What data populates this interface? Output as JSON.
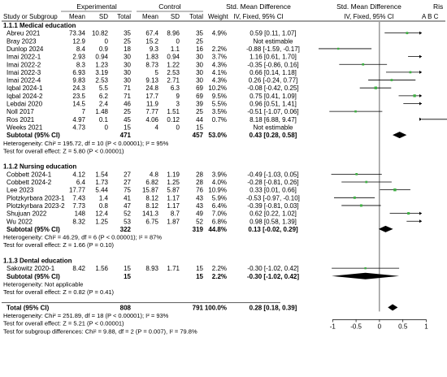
{
  "header": {
    "group_experimental": "Experimental",
    "group_control": "Control",
    "col_study": "Study or Subgroup",
    "col_mean": "Mean",
    "col_sd": "SD",
    "col_total": "Total",
    "col_weight": "Weight",
    "smd_title": "Std. Mean Difference",
    "smd_method": "IV, Fixed, 95% CI",
    "plot_title": "Std. Mean Difference",
    "plot_method": "IV, Fixed, 95% CI",
    "risk_title": "Ris",
    "risk_cols": "A  B  C"
  },
  "colors": {
    "square": "#3fb043",
    "line": "#000000",
    "diamond": "#000000"
  },
  "chart_data": {
    "type": "forest",
    "xlim": [
      -1.3,
      0.8
    ],
    "xticks": [
      -1,
      -0.5,
      0,
      0.5,
      1
    ],
    "rows": [
      {
        "kind": "heading",
        "label": "1.1.1 Medical education"
      },
      {
        "kind": "study",
        "label": "Abreu 2021",
        "e_mean": "73.34",
        "e_sd": "10.82",
        "e_n": "35",
        "c_mean": "67.4",
        "c_sd": "8.96",
        "c_n": "35",
        "weight": "4.9%",
        "ci_text": "0.59 [0.11, 1.07]",
        "est": 0.59,
        "lo": 0.11,
        "hi": 1.07,
        "w": 4.9
      },
      {
        "kind": "study",
        "label": "Bray 2023",
        "e_mean": "12.9",
        "e_sd": "0",
        "e_n": "25",
        "c_mean": "15.2",
        "c_sd": "0",
        "c_n": "25",
        "weight": "",
        "ci_text": "Not estimable"
      },
      {
        "kind": "study",
        "label": "Dunlop 2024",
        "e_mean": "8.4",
        "e_sd": "0.9",
        "e_n": "18",
        "c_mean": "9.3",
        "c_sd": "1.1",
        "c_n": "16",
        "weight": "2.2%",
        "ci_text": "-0.88 [-1.59, -0.17]",
        "est": -0.88,
        "lo": -1.59,
        "hi": -0.17,
        "w": 2.2
      },
      {
        "kind": "study",
        "label": "Imai 2022-1",
        "e_mean": "2.93",
        "e_sd": "0.94",
        "e_n": "30",
        "c_mean": "1.83",
        "c_sd": "0.94",
        "c_n": "30",
        "weight": "3.7%",
        "ci_text": "1.16 [0.61, 1.70]",
        "est": 1.16,
        "lo": 0.61,
        "hi": 1.7,
        "w": 3.7
      },
      {
        "kind": "study",
        "label": "Imai 2022-2",
        "e_mean": "8.3",
        "e_sd": "1.23",
        "e_n": "30",
        "c_mean": "8.73",
        "c_sd": "1.22",
        "c_n": "30",
        "weight": "4.3%",
        "ci_text": "-0.35 [-0.86, 0.16]",
        "est": -0.35,
        "lo": -0.86,
        "hi": 0.16,
        "w": 4.3
      },
      {
        "kind": "study",
        "label": "Imai 2022-3",
        "e_mean": "6.93",
        "e_sd": "3.19",
        "e_n": "30",
        "c_mean": "5",
        "c_sd": "2.53",
        "c_n": "30",
        "weight": "4.1%",
        "ci_text": "0.66 [0.14, 1.18]",
        "est": 0.66,
        "lo": 0.14,
        "hi": 1.18,
        "w": 4.1
      },
      {
        "kind": "study",
        "label": "Imai 2022-4",
        "e_mean": "9.83",
        "e_sd": "2.53",
        "e_n": "30",
        "c_mean": "9.13",
        "c_sd": "2.71",
        "c_n": "30",
        "weight": "4.3%",
        "ci_text": "0.26 [-0.24, 0.77]",
        "est": 0.26,
        "lo": -0.24,
        "hi": 0.77,
        "w": 4.3
      },
      {
        "kind": "study",
        "label": "Iqbal 2024-1",
        "e_mean": "24.3",
        "e_sd": "5.5",
        "e_n": "71",
        "c_mean": "24.8",
        "c_sd": "6.3",
        "c_n": "69",
        "weight": "10.2%",
        "ci_text": "-0.08 [-0.42, 0.25]",
        "est": -0.08,
        "lo": -0.42,
        "hi": 0.25,
        "w": 10.2
      },
      {
        "kind": "study",
        "label": "Iqbal 2024-2",
        "e_mean": "23.5",
        "e_sd": "6.2",
        "e_n": "71",
        "c_mean": "17.7",
        "c_sd": "9",
        "c_n": "69",
        "weight": "9.5%",
        "ci_text": "0.75 [0.41, 1.09]",
        "est": 0.75,
        "lo": 0.41,
        "hi": 1.09,
        "w": 9.5
      },
      {
        "kind": "study",
        "label": "Lebdai 2020",
        "e_mean": "14.5",
        "e_sd": "2.4",
        "e_n": "46",
        "c_mean": "11.9",
        "c_sd": "3",
        "c_n": "39",
        "weight": "5.5%",
        "ci_text": "0.96 [0.51, 1.41]",
        "est": 0.96,
        "lo": 0.51,
        "hi": 1.41,
        "w": 5.5
      },
      {
        "kind": "study",
        "label": "Noll 2017",
        "e_mean": "7",
        "e_sd": "1.48",
        "e_n": "25",
        "c_mean": "7.77",
        "c_sd": "1.51",
        "c_n": "25",
        "weight": "3.5%",
        "ci_text": "-0.51 [-1.07, 0.06]",
        "est": -0.51,
        "lo": -1.07,
        "hi": 0.06,
        "w": 3.5
      },
      {
        "kind": "study",
        "label": "Ros 2021",
        "e_mean": "4.97",
        "e_sd": "0.1",
        "e_n": "45",
        "c_mean": "4.06",
        "c_sd": "0.12",
        "c_n": "44",
        "weight": "0.7%",
        "ci_text": "8.18 [6.88, 9.47]",
        "est": 8.18,
        "lo": 6.88,
        "hi": 9.47,
        "w": 0.7
      },
      {
        "kind": "study",
        "label": "Weeks 2021",
        "e_mean": "4.73",
        "e_sd": "0",
        "e_n": "15",
        "c_mean": "4",
        "c_sd": "0",
        "c_n": "15",
        "weight": "",
        "ci_text": "Not estimable"
      },
      {
        "kind": "subtotal",
        "label": "Subtotal (95% CI)",
        "e_n": "471",
        "c_n": "457",
        "weight": "53.0%",
        "ci_text": "0.43 [0.28, 0.58]",
        "est": 0.43,
        "lo": 0.28,
        "hi": 0.58
      },
      {
        "kind": "note",
        "label": "Heterogeneity: Chi² = 195.72, df = 10 (P < 0.00001); I² = 95%"
      },
      {
        "kind": "note",
        "label": "Test for overall effect: Z = 5.80 (P < 0.00001)"
      },
      {
        "kind": "blank"
      },
      {
        "kind": "heading",
        "label": "1.1.2 Nursing education"
      },
      {
        "kind": "study",
        "label": "Cobbett 2024-1",
        "e_mean": "4.12",
        "e_sd": "1.54",
        "e_n": "27",
        "c_mean": "4.8",
        "c_sd": "1.19",
        "c_n": "28",
        "weight": "3.9%",
        "ci_text": "-0.49 [-1.03, 0.05]",
        "est": -0.49,
        "lo": -1.03,
        "hi": 0.05,
        "w": 3.9
      },
      {
        "kind": "study",
        "label": "Cobbett 2024-2",
        "e_mean": "6.4",
        "e_sd": "1.73",
        "e_n": "27",
        "c_mean": "6.82",
        "c_sd": "1.25",
        "c_n": "28",
        "weight": "4.0%",
        "ci_text": "-0.28 [-0.81, 0.26]",
        "est": -0.28,
        "lo": -0.81,
        "hi": 0.26,
        "w": 4.0
      },
      {
        "kind": "study",
        "label": "Lee 2023",
        "e_mean": "17.77",
        "e_sd": "5.44",
        "e_n": "75",
        "c_mean": "15.87",
        "c_sd": "5.87",
        "c_n": "76",
        "weight": "10.9%",
        "ci_text": "0.33 [0.01, 0.66]",
        "est": 0.33,
        "lo": 0.01,
        "hi": 0.66,
        "w": 10.9
      },
      {
        "kind": "study",
        "label": "Plotzkyrbara 2023-1",
        "e_mean": "7.43",
        "e_sd": "1.4",
        "e_n": "41",
        "c_mean": "8.12",
        "c_sd": "1.17",
        "c_n": "43",
        "weight": "5.9%",
        "ci_text": "-0.53 [-0.97, -0.10]",
        "est": -0.53,
        "lo": -0.97,
        "hi": -0.1,
        "w": 5.9
      },
      {
        "kind": "study",
        "label": "Plotzkyrbara 2023-2",
        "e_mean": "7.73",
        "e_sd": "0.8",
        "e_n": "47",
        "c_mean": "8.12",
        "c_sd": "1.17",
        "c_n": "43",
        "weight": "6.4%",
        "ci_text": "-0.39 [-0.81, 0.03]",
        "est": -0.39,
        "lo": -0.81,
        "hi": 0.03,
        "w": 6.4
      },
      {
        "kind": "study",
        "label": "Shujuan 2022",
        "e_mean": "148",
        "e_sd": "12.4",
        "e_n": "52",
        "c_mean": "141.3",
        "c_sd": "8.7",
        "c_n": "49",
        "weight": "7.0%",
        "ci_text": "0.62 [0.22, 1.02]",
        "est": 0.62,
        "lo": 0.22,
        "hi": 1.02,
        "w": 7.0
      },
      {
        "kind": "study",
        "label": "Wu 2022",
        "e_mean": "8.32",
        "e_sd": "1.25",
        "e_n": "53",
        "c_mean": "6.75",
        "c_sd": "1.87",
        "c_n": "52",
        "weight": "6.8%",
        "ci_text": "0.98 [0.58, 1.39]",
        "est": 0.98,
        "lo": 0.58,
        "hi": 1.39,
        "w": 6.8
      },
      {
        "kind": "subtotal",
        "label": "Subtotal (95% CI)",
        "e_n": "322",
        "c_n": "319",
        "weight": "44.8%",
        "ci_text": "0.13 [-0.02, 0.29]",
        "est": 0.13,
        "lo": -0.02,
        "hi": 0.29
      },
      {
        "kind": "note",
        "label": "Heterogeneity: Chi² = 46.29, df = 6 (P < 0.00001); I² = 87%"
      },
      {
        "kind": "note",
        "label": "Test for overall effect: Z = 1.66 (P = 0.10)"
      },
      {
        "kind": "blank"
      },
      {
        "kind": "heading",
        "label": "1.1.3 Dental education"
      },
      {
        "kind": "study",
        "label": "Sakowitz 2020-1",
        "e_mean": "8.42",
        "e_sd": "1.56",
        "e_n": "15",
        "c_mean": "8.93",
        "c_sd": "1.71",
        "c_n": "15",
        "weight": "2.2%",
        "ci_text": "-0.30 [-1.02, 0.42]",
        "est": -0.3,
        "lo": -1.02,
        "hi": 0.42,
        "w": 2.2
      },
      {
        "kind": "subtotal",
        "label": "Subtotal (95% CI)",
        "e_n": "15",
        "c_n": "15",
        "weight": "2.2%",
        "ci_text": "-0.30 [-1.02, 0.42]",
        "est": -0.3,
        "lo": -1.02,
        "hi": 0.42
      },
      {
        "kind": "note",
        "label": "Heterogeneity: Not applicable"
      },
      {
        "kind": "note",
        "label": "Test for overall effect: Z = 0.82 (P = 0.41)"
      },
      {
        "kind": "blank"
      },
      {
        "kind": "total",
        "label": "Total (95% CI)",
        "e_n": "808",
        "c_n": "791",
        "weight": "100.0%",
        "ci_text": "0.28 [0.18, 0.39]",
        "est": 0.28,
        "lo": 0.18,
        "hi": 0.39
      },
      {
        "kind": "note",
        "label": "Heterogeneity: Chi² = 251.89, df = 18 (P < 0.00001); I² = 93%"
      },
      {
        "kind": "note",
        "label": "Test for overall effect: Z = 5.21 (P < 0.00001)"
      },
      {
        "kind": "note",
        "label": "Test for subgroup differences: Chi² = 9.88, df = 2 (P = 0.007), I² = 79.8%"
      }
    ]
  }
}
